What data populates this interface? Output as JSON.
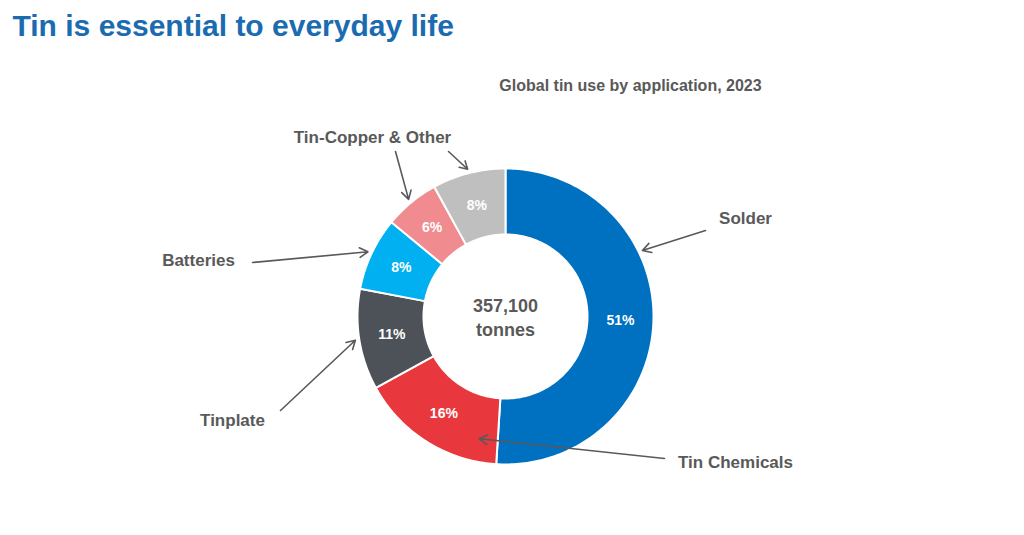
{
  "chart_data": {
    "type": "donut",
    "title": "Tin is essential to everyday life",
    "subtitle": "Global tin use by application, 2023",
    "center_label": "357,100 tonnes",
    "categories": [
      "Solder",
      "Tin Chemicals",
      "Tinplate",
      "Batteries",
      "Tin-Copper & Other",
      null
    ],
    "values": [
      51,
      16,
      11,
      8,
      6,
      8
    ],
    "value_labels": [
      "51%",
      "16%",
      "11%",
      "8%",
      "6%",
      "8%"
    ],
    "colors": [
      "#0070C0",
      "#E8383D",
      "#4D5258",
      "#00B0F0",
      "#F08C8F",
      "#BFBFBF"
    ],
    "data_labels": true,
    "tick_labels": false
  }
}
